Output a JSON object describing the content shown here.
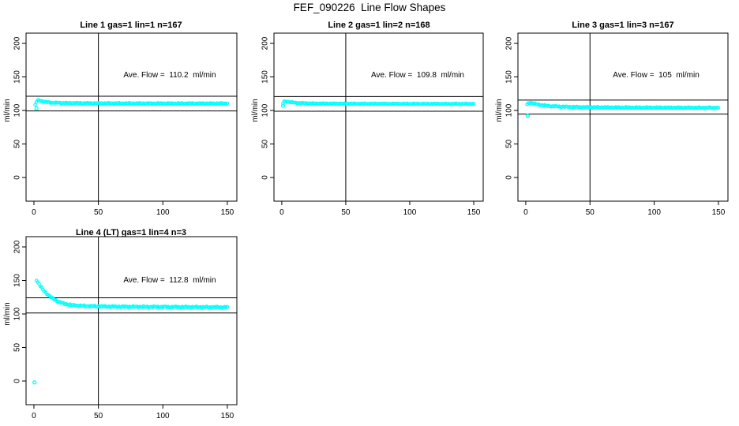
{
  "title": "FEF_090226  Line Flow Shapes",
  "colors": {
    "series": "#00FFFF",
    "axis": "#000000",
    "background": "#FFFFFF"
  },
  "chart_data": [
    {
      "type": "scatter",
      "title": "Line 1 gas=1 lin=1 n=167",
      "annotation": "Ave. Flow =  110.2  ml/min",
      "ave_flow_ml_min": 110.2,
      "n": 167,
      "xlabel": "",
      "ylabel": "ml/min",
      "xticks": [
        0,
        50,
        100,
        150
      ],
      "yticks": [
        0,
        50,
        100,
        150,
        200
      ],
      "xlim": [
        -6.1,
        157.4
      ],
      "ylim": [
        -35.3,
        215.3
      ],
      "grid": false,
      "vline_x": 50,
      "hlines": [
        121.2,
        99.2
      ],
      "marker": "open-circle",
      "color": "#00FFFF",
      "x_start": 1,
      "x_end": 150,
      "x_step": 1,
      "jitter": 0.8,
      "profile": [
        [
          1,
          108
        ],
        [
          2,
          113
        ],
        [
          3,
          115
        ],
        [
          4,
          115.2
        ],
        [
          6,
          114
        ],
        [
          9,
          112.6
        ],
        [
          14,
          111.6
        ],
        [
          25,
          111
        ],
        [
          50,
          110.7
        ],
        [
          90,
          110.5
        ],
        [
          150,
          110.5
        ]
      ],
      "outliers": [
        [
          2,
          103
        ]
      ]
    },
    {
      "type": "scatter",
      "title": "Line 2 gas=1 lin=2 n=168",
      "annotation": "Ave. Flow =  109.8  ml/min",
      "ave_flow_ml_min": 109.8,
      "n": 168,
      "xlabel": "",
      "ylabel": "ml/min",
      "xticks": [
        0,
        50,
        100,
        150
      ],
      "yticks": [
        0,
        50,
        100,
        150,
        200
      ],
      "xlim": [
        -6.1,
        157.4
      ],
      "ylim": [
        -35.3,
        215.3
      ],
      "grid": false,
      "vline_x": 50,
      "hlines": [
        120.8,
        98.8
      ],
      "marker": "open-circle",
      "color": "#00FFFF",
      "x_start": 1,
      "x_end": 150,
      "x_step": 1,
      "jitter": 0.7,
      "profile": [
        [
          1,
          111
        ],
        [
          2,
          113.5
        ],
        [
          4,
          113.2
        ],
        [
          7,
          112.2
        ],
        [
          12,
          111.2
        ],
        [
          25,
          110.4
        ],
        [
          60,
          110
        ],
        [
          150,
          109.8
        ]
      ],
      "outliers": [
        [
          1,
          107
        ]
      ]
    },
    {
      "type": "scatter",
      "title": "Line 3 gas=1 lin=3 n=167",
      "annotation": "Ave. Flow =  105  ml/min",
      "ave_flow_ml_min": 105,
      "n": 167,
      "xlabel": "",
      "ylabel": "ml/min",
      "xticks": [
        0,
        50,
        100,
        150
      ],
      "yticks": [
        0,
        50,
        100,
        150,
        200
      ],
      "xlim": [
        -6.1,
        157.4
      ],
      "ylim": [
        -35.3,
        215.3
      ],
      "grid": false,
      "vline_x": 50,
      "hlines": [
        115.5,
        94.5
      ],
      "marker": "open-circle",
      "color": "#00FFFF",
      "x_start": 1,
      "x_end": 150,
      "x_step": 1,
      "jitter": 0.9,
      "profile": [
        [
          1,
          109
        ],
        [
          2.5,
          111.5
        ],
        [
          4,
          111.5
        ],
        [
          7,
          110
        ],
        [
          12,
          108
        ],
        [
          20,
          106.3
        ],
        [
          35,
          105.2
        ],
        [
          60,
          104.6
        ],
        [
          100,
          104.2
        ],
        [
          150,
          104
        ]
      ],
      "outliers": [
        [
          1.5,
          92
        ]
      ]
    },
    {
      "type": "scatter",
      "title": "Line 4 (LT) gas=1 lin=4 n=3",
      "annotation": "Ave. Flow =  112.8  ml/min",
      "ave_flow_ml_min": 112.8,
      "n": 3,
      "xlabel": "",
      "ylabel": "ml/min",
      "xticks": [
        0,
        50,
        100,
        150
      ],
      "yticks": [
        0,
        50,
        100,
        150,
        200
      ],
      "xlim": [
        -6.1,
        157.4
      ],
      "ylim": [
        -35.3,
        215.3
      ],
      "grid": false,
      "vline_x": 50,
      "hlines": [
        124.1,
        101.5
      ],
      "marker": "open-circle",
      "color": "#00FFFF",
      "x_start": 2,
      "x_end": 150,
      "x_step": 1,
      "jitter": 1.2,
      "profile": [
        [
          2,
          151
        ],
        [
          3,
          147.5
        ],
        [
          5,
          141.5
        ],
        [
          7,
          136.5
        ],
        [
          9,
          132
        ],
        [
          12,
          127
        ],
        [
          15,
          122.5
        ],
        [
          19,
          118.3
        ],
        [
          24,
          115
        ],
        [
          30,
          113
        ],
        [
          40,
          111.8
        ],
        [
          60,
          111
        ],
        [
          90,
          110.6
        ],
        [
          120,
          110.3
        ],
        [
          150,
          110
        ]
      ],
      "outliers": [
        [
          0.5,
          -2
        ]
      ]
    }
  ]
}
